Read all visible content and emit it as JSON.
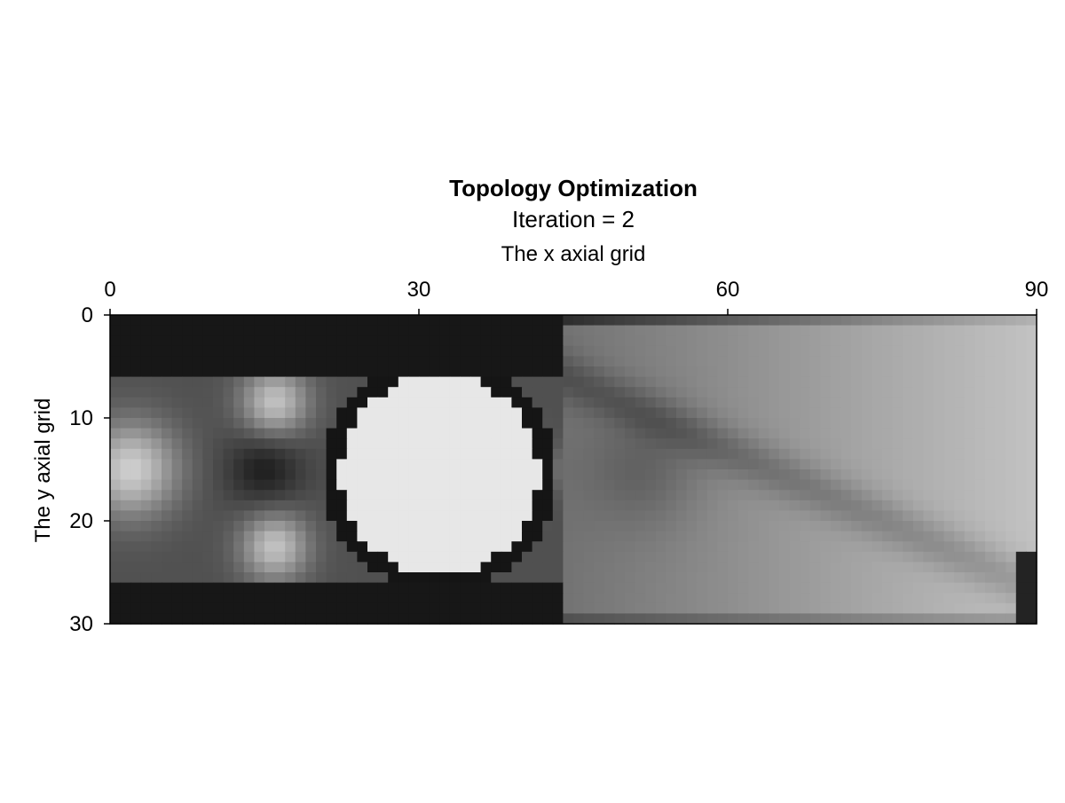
{
  "chart_data": {
    "type": "heatmap",
    "title": "Topology Optimization",
    "subtitle": "Iteration = 2",
    "xlabel": "The x axial grid",
    "ylabel": "The y axial grid",
    "x_axis_position": "top",
    "y_axis_inverted": true,
    "xlim": [
      0,
      90
    ],
    "ylim": [
      0,
      30
    ],
    "x_ticks": [
      "0",
      "30",
      "60",
      "90"
    ],
    "x_tick_values": [
      0,
      30,
      60,
      90
    ],
    "y_ticks": [
      "0",
      "10",
      "20",
      "30"
    ],
    "y_tick_values": [
      0,
      10,
      20,
      30
    ],
    "grid": false,
    "colormap": "grayscale (low = black, high = light gray)",
    "value_range": [
      0,
      1
    ],
    "cell_size": 1,
    "void_region": {
      "shape": "circle",
      "center": [
        32,
        15.5
      ],
      "radius": 9.7,
      "value": 0.96
    }
  }
}
